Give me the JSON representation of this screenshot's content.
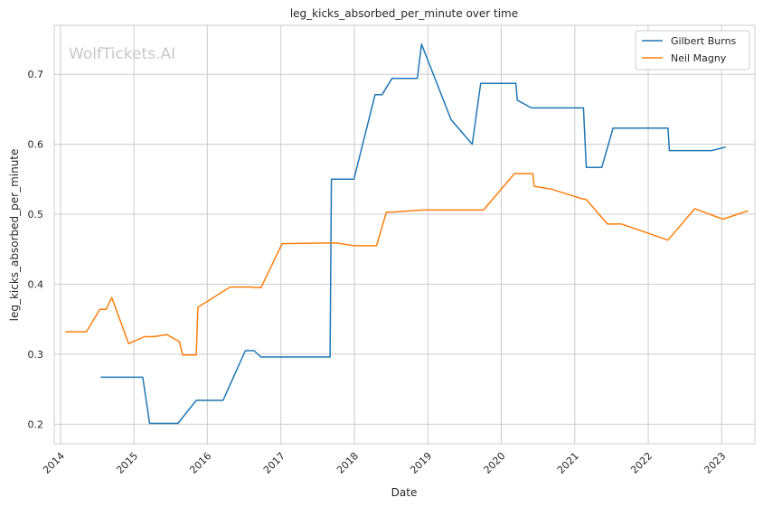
{
  "watermark": "WolfTickets.AI",
  "chart_data": {
    "type": "line",
    "title": "leg_kicks_absorbed_per_minute over time",
    "xlabel": "Date",
    "ylabel": "leg_kicks_absorbed_per_minute",
    "x_axis_type": "date",
    "xlim": [
      "2013-12-01",
      "2023-06-15"
    ],
    "ylim": [
      0.172,
      0.77
    ],
    "x_ticks": [
      "2014",
      "2015",
      "2016",
      "2017",
      "2018",
      "2019",
      "2020",
      "2021",
      "2022",
      "2023"
    ],
    "y_ticks": [
      "0.2",
      "0.3",
      "0.4",
      "0.5",
      "0.6",
      "0.7"
    ],
    "grid": true,
    "legend_position": "top-right",
    "series": [
      {
        "name": "Gilbert Burns",
        "color": "#1f77b4",
        "points": [
          [
            "2014-07-20",
            0.267
          ],
          [
            "2015-02-14",
            0.267
          ],
          [
            "2015-03-20",
            0.201
          ],
          [
            "2015-08-08",
            0.201
          ],
          [
            "2015-11-07",
            0.234
          ],
          [
            "2016-03-19",
            0.234
          ],
          [
            "2016-07-08",
            0.305
          ],
          [
            "2016-08-20",
            0.305
          ],
          [
            "2016-09-24",
            0.296
          ],
          [
            "2017-09-02",
            0.296
          ],
          [
            "2017-09-09",
            0.55
          ],
          [
            "2017-12-30",
            0.55
          ],
          [
            "2018-04-14",
            0.671
          ],
          [
            "2018-05-19",
            0.671
          ],
          [
            "2018-07-07",
            0.694
          ],
          [
            "2018-11-10",
            0.694
          ],
          [
            "2018-12-01",
            0.743
          ],
          [
            "2019-04-27",
            0.635
          ],
          [
            "2019-08-10",
            0.6
          ],
          [
            "2019-09-21",
            0.687
          ],
          [
            "2020-03-14",
            0.687
          ],
          [
            "2020-03-21",
            0.663
          ],
          [
            "2020-05-30",
            0.652
          ],
          [
            "2021-02-13",
            0.652
          ],
          [
            "2021-02-27",
            0.567
          ],
          [
            "2021-05-15",
            0.567
          ],
          [
            "2021-07-10",
            0.623
          ],
          [
            "2022-04-09",
            0.623
          ],
          [
            "2022-04-16",
            0.591
          ],
          [
            "2022-11-12",
            0.591
          ],
          [
            "2023-01-21",
            0.596
          ]
        ]
      },
      {
        "name": "Neil Magny",
        "color": "#ff7f0e",
        "points": [
          [
            "2014-01-25",
            0.332
          ],
          [
            "2014-05-10",
            0.332
          ],
          [
            "2014-07-16",
            0.364
          ],
          [
            "2014-08-16",
            0.364
          ],
          [
            "2014-09-13",
            0.381
          ],
          [
            "2014-12-06",
            0.315
          ],
          [
            "2015-02-22",
            0.325
          ],
          [
            "2015-04-11",
            0.325
          ],
          [
            "2015-06-13",
            0.328
          ],
          [
            "2015-08-15",
            0.318
          ],
          [
            "2015-08-31",
            0.299
          ],
          [
            "2015-11-07",
            0.299
          ],
          [
            "2015-11-15",
            0.367
          ],
          [
            "2016-04-23",
            0.396
          ],
          [
            "2016-08-06",
            0.396
          ],
          [
            "2016-08-27",
            0.395
          ],
          [
            "2016-09-24",
            0.395
          ],
          [
            "2017-01-07",
            0.458
          ],
          [
            "2017-09-30",
            0.459
          ],
          [
            "2018-01-01",
            0.455
          ],
          [
            "2018-04-21",
            0.455
          ],
          [
            "2018-06-09",
            0.503
          ],
          [
            "2018-07-07",
            0.503
          ],
          [
            "2018-12-08",
            0.506
          ],
          [
            "2019-10-05",
            0.506
          ],
          [
            "2020-03-07",
            0.558
          ],
          [
            "2020-06-06",
            0.558
          ],
          [
            "2020-06-13",
            0.54
          ],
          [
            "2020-09-05",
            0.536
          ],
          [
            "2021-02-06",
            0.522
          ],
          [
            "2021-02-27",
            0.521
          ],
          [
            "2021-06-12",
            0.486
          ],
          [
            "2021-08-21",
            0.486
          ],
          [
            "2022-04-09",
            0.463
          ],
          [
            "2022-08-20",
            0.508
          ],
          [
            "2023-01-07",
            0.493
          ],
          [
            "2023-05-13",
            0.505
          ]
        ]
      }
    ]
  }
}
